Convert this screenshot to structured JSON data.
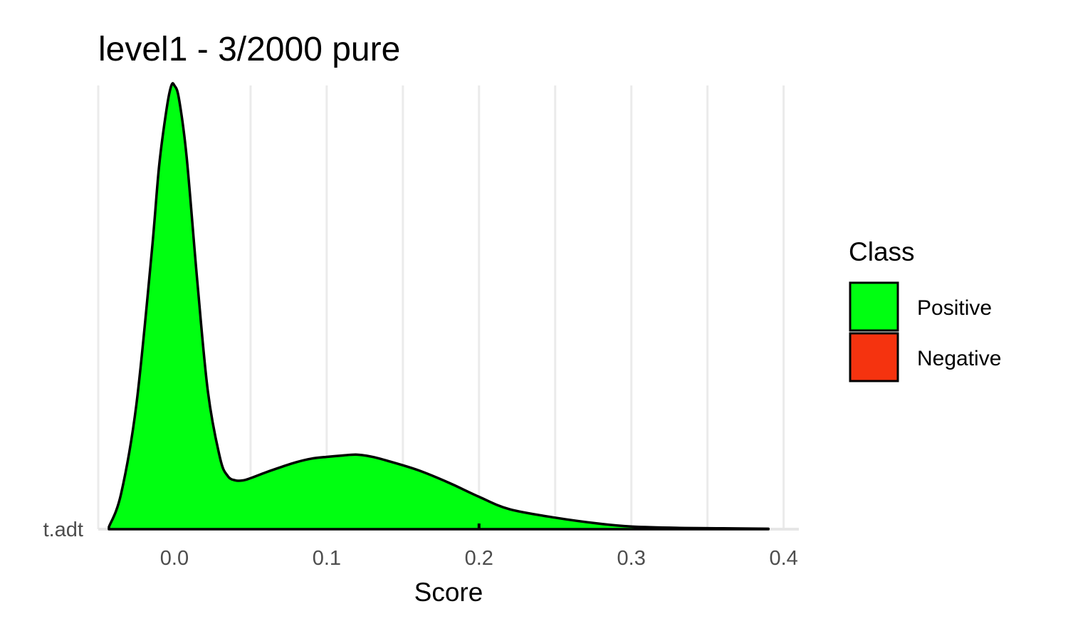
{
  "chart_data": {
    "type": "area",
    "subtype": "density-ridgeline",
    "title": "level1 - 3/2000 pure",
    "xlabel": "Score",
    "ylabel": "",
    "xlim": [
      -0.05,
      0.41
    ],
    "x_ticks": [
      0.0,
      0.1,
      0.2,
      0.3,
      0.4
    ],
    "x_tick_labels": [
      "0.0",
      "0.1",
      "0.2",
      "0.3",
      "0.4"
    ],
    "y_categories": [
      "t.adt"
    ],
    "grid": "vertical",
    "legend": {
      "title": "Class",
      "position": "right",
      "entries": [
        {
          "label": "Positive",
          "color": "#00ff11"
        },
        {
          "label": "Negative",
          "color": "#f5330f"
        }
      ]
    },
    "series": [
      {
        "name": "Positive",
        "category": "t.adt",
        "color": "#00ff11",
        "x": [
          -0.043,
          -0.035,
          -0.025,
          -0.015,
          -0.01,
          -0.005,
          -0.002,
          0.0,
          0.003,
          0.008,
          0.015,
          0.022,
          0.03,
          0.035,
          0.04,
          0.045,
          0.05,
          0.06,
          0.07,
          0.08,
          0.09,
          0.1,
          0.11,
          0.12,
          0.13,
          0.14,
          0.16,
          0.18,
          0.2,
          0.22,
          0.25,
          0.28,
          0.3,
          0.33,
          0.36,
          0.39
        ],
        "y": [
          0.005,
          0.08,
          0.28,
          0.62,
          0.82,
          0.95,
          1.0,
          1.0,
          0.97,
          0.84,
          0.56,
          0.31,
          0.16,
          0.12,
          0.11,
          0.11,
          0.115,
          0.128,
          0.14,
          0.151,
          0.159,
          0.163,
          0.166,
          0.168,
          0.163,
          0.154,
          0.133,
          0.105,
          0.073,
          0.045,
          0.026,
          0.012,
          0.006,
          0.003,
          0.002,
          0.001
        ]
      }
    ],
    "rug_marks": [
      0.2
    ]
  }
}
